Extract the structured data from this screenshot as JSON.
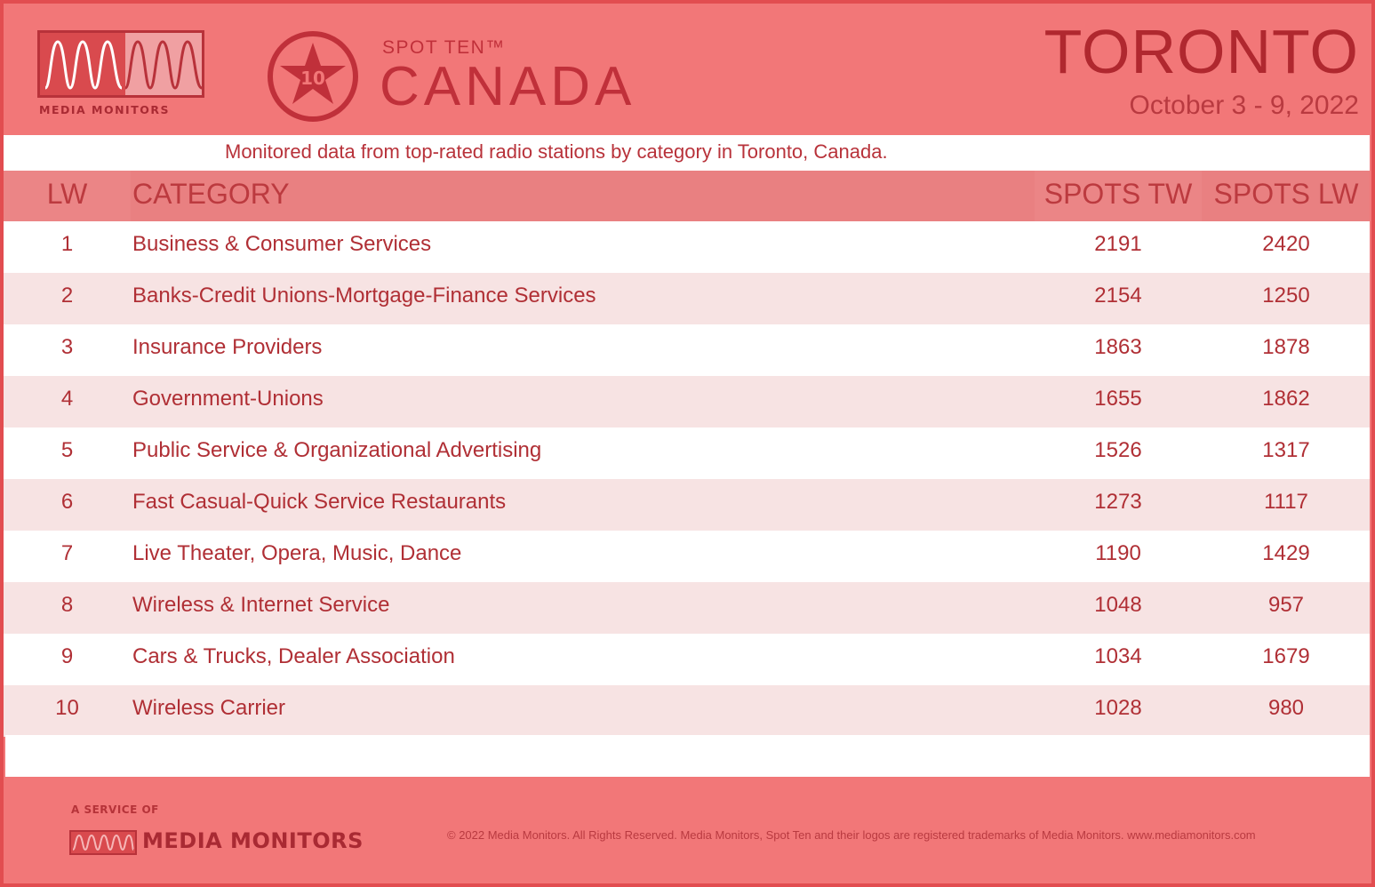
{
  "header": {
    "logo_text": "MEDIA MONITORS",
    "badge_number": "10",
    "spot_ten": "SPOT TEN™",
    "country": "CANADA",
    "city": "TORONTO",
    "dates": "October 3 - 9, 2022"
  },
  "subtitle": "Monitored data from top-rated radio stations by category in Toronto, Canada.",
  "table": {
    "columns": {
      "lw": "LW",
      "category": "CATEGORY",
      "spots_tw": "SPOTS TW",
      "spots_lw": "SPOTS LW"
    },
    "rows": [
      {
        "lw": "1",
        "category": "Business & Consumer Services",
        "spots_tw": "2191",
        "spots_lw": "2420"
      },
      {
        "lw": "2",
        "category": "Banks-Credit Unions-Mortgage-Finance Services",
        "spots_tw": "2154",
        "spots_lw": "1250"
      },
      {
        "lw": "3",
        "category": "Insurance Providers",
        "spots_tw": "1863",
        "spots_lw": "1878"
      },
      {
        "lw": "4",
        "category": "Government-Unions",
        "spots_tw": "1655",
        "spots_lw": "1862"
      },
      {
        "lw": "5",
        "category": "Public Service & Organizational Advertising",
        "spots_tw": "1526",
        "spots_lw": "1317"
      },
      {
        "lw": "6",
        "category": "Fast Casual-Quick Service Restaurants",
        "spots_tw": "1273",
        "spots_lw": "1117"
      },
      {
        "lw": "7",
        "category": "Live Theater, Opera, Music, Dance",
        "spots_tw": "1190",
        "spots_lw": "1429"
      },
      {
        "lw": "8",
        "category": "Wireless & Internet Service",
        "spots_tw": "1048",
        "spots_lw": "957"
      },
      {
        "lw": "9",
        "category": "Cars & Trucks, Dealer Association",
        "spots_tw": "1034",
        "spots_lw": "1679"
      },
      {
        "lw": "10",
        "category": "Wireless Carrier",
        "spots_tw": "1028",
        "spots_lw": "980"
      }
    ]
  },
  "footer": {
    "service_of": "A SERVICE OF",
    "brand": "MEDIA MONITORS",
    "copyright": "© 2022 Media Monitors. All Rights Reserved. Media Monitors, Spot Ten and their logos are registered trademarks of Media Monitors. www.mediamonitors.com"
  },
  "colors": {
    "header_bg": "#f27778",
    "accent": "#b0282f",
    "row_alt": "#f7e3e3",
    "table_header": "#e98081"
  }
}
